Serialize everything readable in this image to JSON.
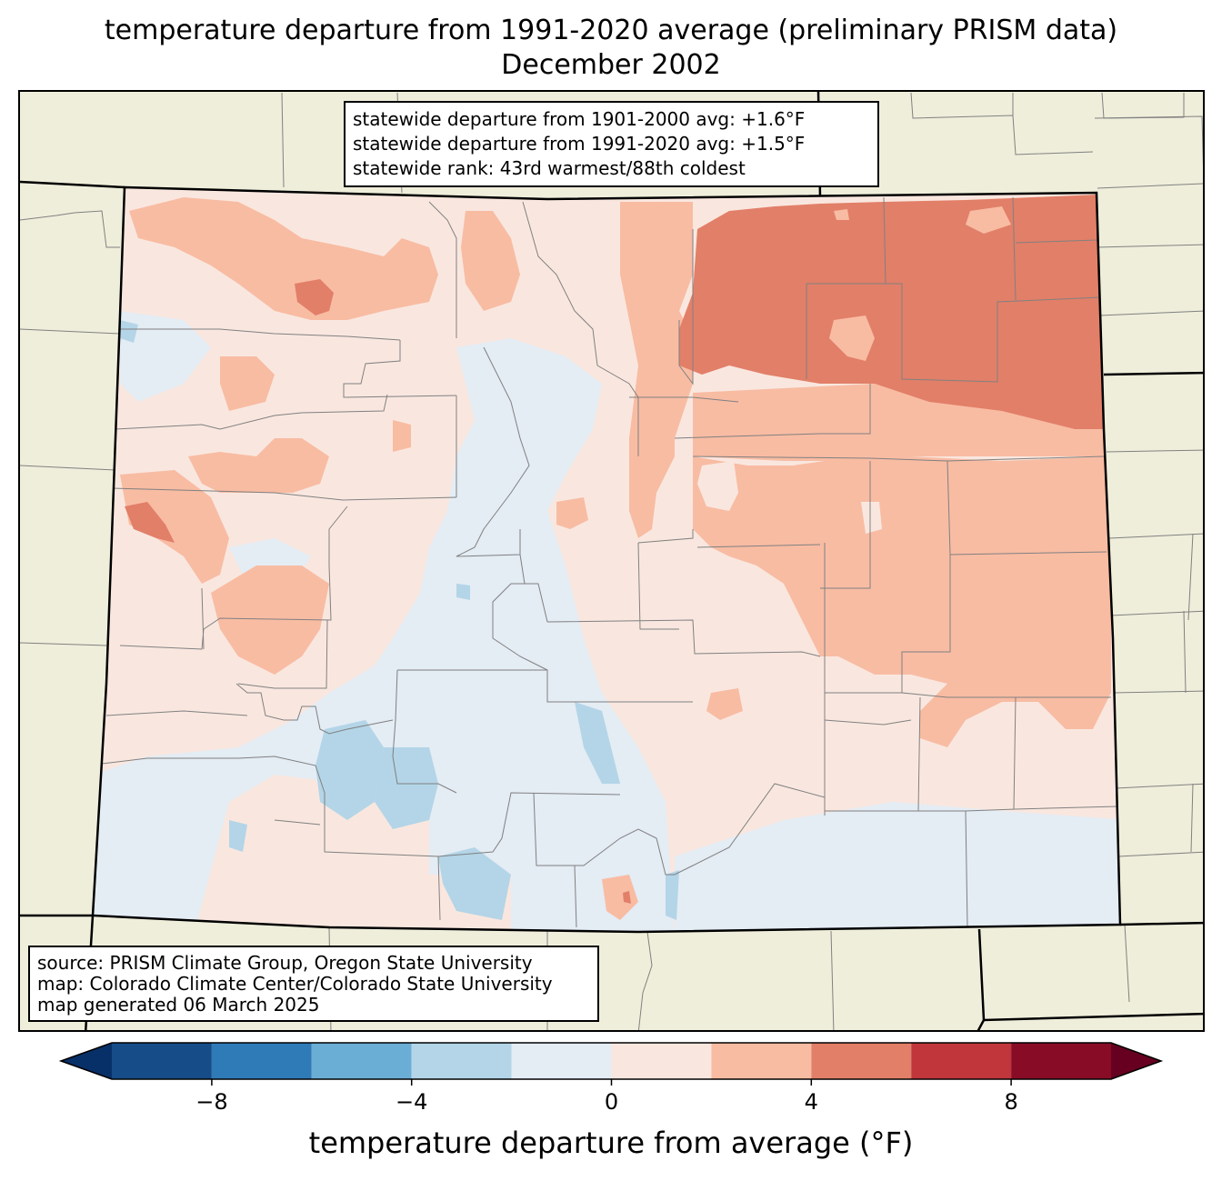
{
  "title": {
    "line1": "temperature departure from 1991-2020 average (preliminary PRISM data)",
    "line2": "December 2002"
  },
  "stats": {
    "line1": "statewide departure from 1901-2000 avg: +1.6°F",
    "line2": "statewide departure from 1991-2020 avg: +1.5°F",
    "line3": "statewide rank: 43rd warmest/88th coldest"
  },
  "source": {
    "line1": "source: PRISM Climate Group, Oregon State University",
    "line2": "map: Colorado Climate Center/Colorado State University",
    "line3": "map generated 06 March 2025"
  },
  "colorbar": {
    "label": "temperature departure from average (°F)",
    "range": [
      -10,
      10
    ],
    "bin_edges": [
      -10,
      -8,
      -6,
      -4,
      -2,
      0,
      2,
      4,
      6,
      8,
      10
    ],
    "bin_colors": [
      "#164c88",
      "#2f7bb8",
      "#6baed5",
      "#b3d5e7",
      "#e4ecf4",
      "#f9e7df",
      "#f8bca3",
      "#e27f68",
      "#c0363b",
      "#880c26"
    ],
    "under_color": "#083068",
    "over_color": "#670020",
    "ticks": [
      -8,
      -4,
      0,
      4,
      8
    ],
    "tick_labels": [
      "−8",
      "−4",
      "0",
      "4",
      "8"
    ]
  },
  "map": {
    "background_color": "#efeedb",
    "boundary_color": "#000000",
    "county_line_color": "#808080"
  }
}
